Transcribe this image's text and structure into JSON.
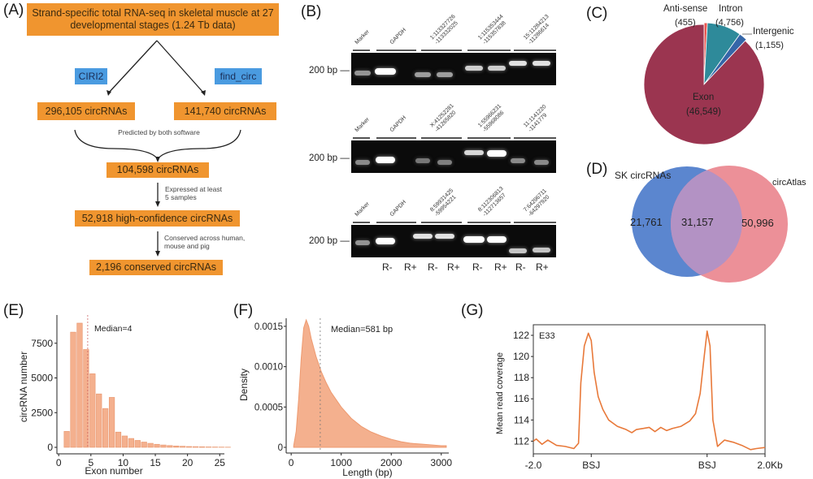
{
  "figure": {
    "panels": {
      "A": "(A)",
      "B": "(B)",
      "C": "(C)",
      "D": "(D)",
      "E": "(E)",
      "F": "(F)",
      "G": "(G)"
    }
  },
  "flowchart": {
    "top_box": "Strand-specific total RNA-seq in skeletal muscle at 27 developmental stages (1.24 Tb data)",
    "tool_left": "CIRI2",
    "tool_right": "find_circ",
    "left_box": "296,105 circRNAs",
    "right_box": "141,740 circRNAs",
    "brace_note": "Predicted by both software",
    "box3": "104,598 circRNAs",
    "note2": "Expressed at least\n5 samples",
    "box4": "52,918 high-confidence circRNAs",
    "note3": "Conserved across human,\nmouse and pig",
    "box5": "2,196 conserved circRNAs",
    "colors": {
      "box": "#f0952f",
      "tool": "#4a9be0"
    }
  },
  "gels": {
    "bp_label": "200 bp",
    "rows": [
      {
        "lanes": [
          "Marker",
          "GAPDH",
          "1:113327726\n-113332025",
          "1:115353444\n-115357838",
          "15:11284213\n-11286614"
        ]
      },
      {
        "lanes": [
          "Marker",
          "GAPDH",
          "X:41252281\n-41265820",
          "1:55966231\n-55968086",
          "11:1141220\n-1141779"
        ]
      },
      {
        "lanes": [
          "Marker",
          "GAPDH",
          "8:59931425\n-59954221",
          "8:112306813\n-112713657",
          "7:64296711\n-64297920"
        ]
      }
    ],
    "treatment_labels": [
      "R-",
      "R+",
      "R-",
      "R+",
      "R-",
      "R+",
      "R-",
      "R+"
    ]
  },
  "chart_data": [
    {
      "id": "C",
      "type": "pie",
      "title": "",
      "slices": [
        {
          "label": "Exon",
          "value": 46549,
          "display": "(46,549)",
          "color": "#9b3550"
        },
        {
          "label": "Anti-sense",
          "value": 455,
          "display": "(455)",
          "color": "#e8554f"
        },
        {
          "label": "Intron",
          "value": 4756,
          "display": "(4,756)",
          "color": "#2e8a9a"
        },
        {
          "label": "Intergenic",
          "value": 1155,
          "display": "(1,155)",
          "color": "#3566a8"
        }
      ]
    },
    {
      "id": "D",
      "type": "venn",
      "sets": [
        {
          "label": "SK circRNAs",
          "only": "21,761",
          "color": "#5b86cf"
        },
        {
          "label": "circAtlas",
          "only": "50,996",
          "color": "#eb8a92"
        }
      ],
      "intersection": "31,157"
    },
    {
      "id": "E",
      "type": "bar",
      "title": "",
      "xlabel": "Exon number",
      "ylabel": "circRNA number",
      "x": [
        1,
        2,
        3,
        4,
        5,
        6,
        7,
        8,
        9,
        10,
        11,
        12,
        13,
        14,
        15,
        16,
        17,
        18,
        19,
        20,
        21,
        22,
        23,
        24,
        25,
        26
      ],
      "values": [
        1150,
        8300,
        8950,
        7050,
        5300,
        3850,
        2800,
        3600,
        1100,
        820,
        640,
        500,
        380,
        290,
        220,
        170,
        130,
        100,
        80,
        60,
        50,
        40,
        30,
        25,
        20,
        15
      ],
      "xticks": [
        "0",
        "5",
        "10",
        "15",
        "20",
        "25"
      ],
      "yticks": [
        "0",
        "2500",
        "5000",
        "7500"
      ],
      "xlim": [
        0,
        26
      ],
      "ylim": [
        0,
        9300
      ],
      "annotation": "Median=4",
      "median": 4,
      "color": "#f4b08e"
    },
    {
      "id": "F",
      "type": "area",
      "title": "",
      "xlabel": "Length (bp)",
      "ylabel": "Density",
      "x": [
        50,
        100,
        150,
        200,
        250,
        300,
        350,
        400,
        500,
        600,
        700,
        800,
        1000,
        1200,
        1400,
        1600,
        1800,
        2000,
        2200,
        2400,
        2600,
        2800,
        3000,
        3100
      ],
      "y": [
        2e-05,
        0.0002,
        0.0006,
        0.0011,
        0.00148,
        0.00158,
        0.0015,
        0.00135,
        0.00112,
        0.00094,
        0.0008,
        0.00068,
        0.0005,
        0.00036,
        0.00026,
        0.00019,
        0.00014,
        0.0001,
        7e-05,
        5e-05,
        4e-05,
        3e-05,
        2e-05,
        2e-05
      ],
      "xticks": [
        "0",
        "1000",
        "2000",
        "3000"
      ],
      "yticks": [
        "0",
        "0.0005",
        "0.0010",
        "0.0015"
      ],
      "xlim": [
        -100,
        3150
      ],
      "ylim": [
        -5e-05,
        0.0016
      ],
      "annotation": "Median=581 bp",
      "median": 581,
      "color": "#f4b08e"
    },
    {
      "id": "G",
      "type": "line",
      "title": "",
      "xlabel": "",
      "ylabel": "Mean read coverage",
      "inset_label": "E33",
      "x": [
        -2.0,
        -1.95,
        -1.85,
        -1.75,
        -1.6,
        -1.45,
        -1.3,
        -1.22,
        -1.18,
        -1.12,
        -1.05,
        -1.0,
        -0.95,
        -0.88,
        -0.8,
        -0.7,
        -0.55,
        -0.4,
        -0.3,
        -0.22,
        -0.1,
        0.0,
        0.1,
        0.2,
        0.3,
        0.4,
        0.55,
        0.7,
        0.8,
        0.88,
        0.95,
        1.0,
        1.05,
        1.1,
        1.18,
        1.3,
        1.45,
        1.6,
        1.75,
        1.85,
        2.0
      ],
      "y": [
        112.0,
        112.2,
        111.7,
        112.1,
        111.6,
        111.5,
        111.3,
        111.8,
        117.5,
        121.0,
        122.2,
        121.5,
        118.5,
        116.2,
        115.0,
        114.0,
        113.4,
        113.1,
        112.8,
        113.1,
        113.2,
        113.3,
        112.9,
        113.3,
        113.0,
        113.2,
        113.4,
        113.9,
        114.6,
        116.5,
        120.0,
        122.4,
        121.0,
        114.0,
        111.5,
        112.1,
        111.9,
        111.6,
        111.2,
        111.3,
        111.4
      ],
      "xticks": [
        "-2.0",
        "BSJ",
        "BSJ",
        "2.0Kb"
      ],
      "xtick_positions": [
        -2.0,
        -1.0,
        1.0,
        2.0
      ],
      "yticks": [
        "112",
        "114",
        "116",
        "118",
        "120",
        "122"
      ],
      "xlim": [
        -2.0,
        2.0
      ],
      "ylim": [
        110.8,
        123.0
      ],
      "color": "#e8793a"
    }
  ]
}
